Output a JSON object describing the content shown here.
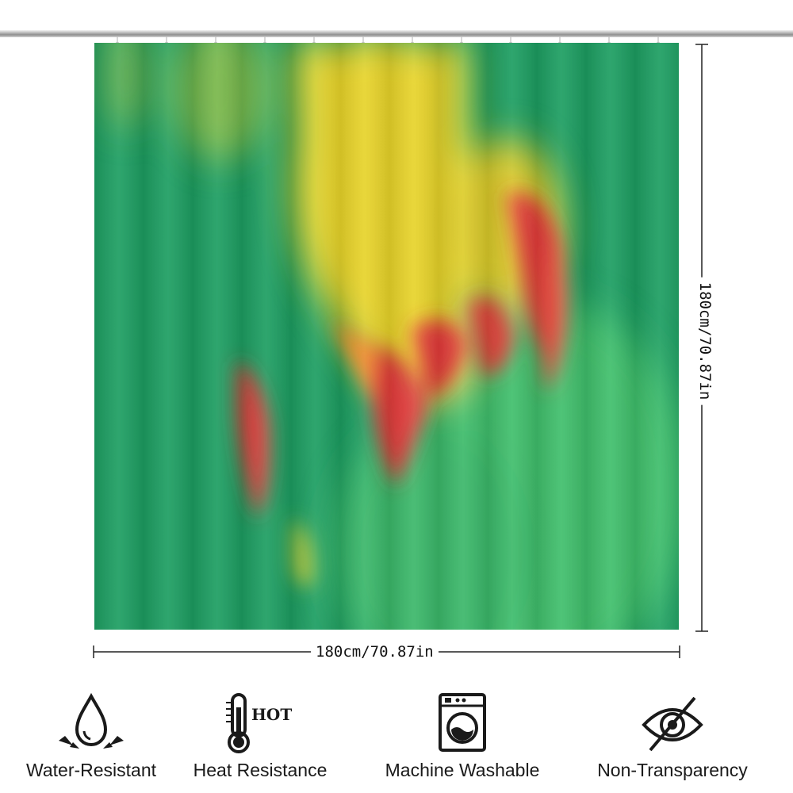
{
  "dimensions": {
    "width_label": "180cm/70.87in",
    "height_label": "180cm/70.87in"
  },
  "curtain": {
    "colors": {
      "base_green": "#1d9e62",
      "light_green": "#3fbf6c",
      "yellow": "#e8d42a",
      "red": "#e23b3b",
      "orange": "#f08a2a"
    }
  },
  "features": [
    {
      "icon": "water-drop-icon",
      "label": "Water-Resistant"
    },
    {
      "icon": "thermometer-icon",
      "label": "Heat Resistance",
      "icon_text": "HOT"
    },
    {
      "icon": "washing-machine-icon",
      "label": "Machine Washable"
    },
    {
      "icon": "eye-slash-icon",
      "label": "Non-Transparency"
    }
  ]
}
